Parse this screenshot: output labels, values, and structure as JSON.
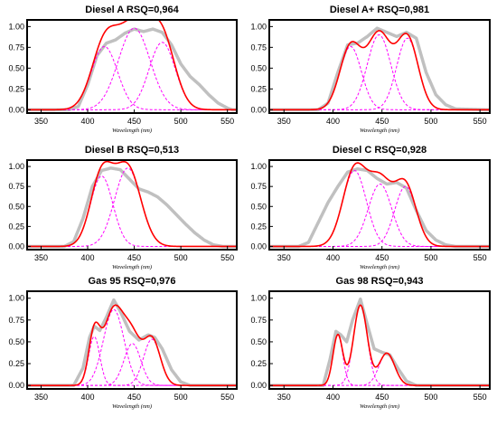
{
  "figure": {
    "background": "#ffffff"
  },
  "chart_data": [
    {
      "type": "line",
      "title": "Diesel A RSQ=0,964",
      "xlabel": "Wavelength (nm)",
      "ylabel": "",
      "xlim": [
        335,
        560
      ],
      "ylim": [
        -0.04,
        1.08
      ],
      "x_ticks": [
        350,
        400,
        450,
        500,
        550
      ],
      "y_ticks": [
        0.0,
        0.25,
        0.5,
        0.75,
        1.0
      ],
      "colors": {
        "measured": "#c0c0c0",
        "fit": "#ff0000",
        "component": "#ff00ff"
      },
      "components": [
        {
          "center": 418,
          "height": 0.76,
          "width": 14
        },
        {
          "center": 450,
          "height": 0.98,
          "width": 17
        },
        {
          "center": 480,
          "height": 0.81,
          "width": 14
        }
      ],
      "measured": [
        [
          340,
          0.0
        ],
        [
          380,
          0.0
        ],
        [
          390,
          0.04
        ],
        [
          400,
          0.3
        ],
        [
          410,
          0.65
        ],
        [
          420,
          0.8
        ],
        [
          430,
          0.84
        ],
        [
          440,
          0.92
        ],
        [
          450,
          0.97
        ],
        [
          460,
          0.94
        ],
        [
          470,
          0.97
        ],
        [
          480,
          0.93
        ],
        [
          490,
          0.78
        ],
        [
          500,
          0.55
        ],
        [
          510,
          0.4
        ],
        [
          520,
          0.3
        ],
        [
          530,
          0.18
        ],
        [
          540,
          0.08
        ],
        [
          550,
          0.02
        ],
        [
          555,
          0.0
        ]
      ]
    },
    {
      "type": "line",
      "title": "Diesel A+ RSQ=0,981",
      "xlabel": "Wavelength (nm)",
      "ylabel": "",
      "xlim": [
        335,
        560
      ],
      "ylim": [
        -0.04,
        1.08
      ],
      "x_ticks": [
        350,
        400,
        450,
        500,
        550
      ],
      "y_ticks": [
        0.0,
        0.25,
        0.5,
        0.75,
        1.0
      ],
      "colors": {
        "measured": "#c0c0c0",
        "fit": "#ff0000",
        "component": "#ff00ff"
      },
      "components": [
        {
          "center": 418,
          "height": 0.76,
          "width": 11
        },
        {
          "center": 447,
          "height": 0.9,
          "width": 12
        },
        {
          "center": 476,
          "height": 0.86,
          "width": 11
        }
      ],
      "measured": [
        [
          340,
          0.0
        ],
        [
          385,
          0.0
        ],
        [
          395,
          0.08
        ],
        [
          405,
          0.45
        ],
        [
          415,
          0.78
        ],
        [
          425,
          0.8
        ],
        [
          435,
          0.88
        ],
        [
          445,
          0.98
        ],
        [
          455,
          0.93
        ],
        [
          465,
          0.88
        ],
        [
          475,
          0.93
        ],
        [
          485,
          0.86
        ],
        [
          495,
          0.45
        ],
        [
          505,
          0.18
        ],
        [
          515,
          0.06
        ],
        [
          525,
          0.01
        ],
        [
          555,
          0.0
        ]
      ]
    },
    {
      "type": "line",
      "title": "Diesel B RSQ=0,513",
      "xlabel": "Wavelength (nm)",
      "ylabel": "",
      "xlim": [
        335,
        560
      ],
      "ylim": [
        -0.04,
        1.08
      ],
      "x_ticks": [
        350,
        400,
        450,
        500,
        550
      ],
      "y_ticks": [
        0.0,
        0.25,
        0.5,
        0.75,
        1.0
      ],
      "colors": {
        "measured": "#c0c0c0",
        "fit": "#ff0000",
        "component": "#ff00ff"
      },
      "components": [
        {
          "center": 415,
          "height": 0.88,
          "width": 12
        },
        {
          "center": 443,
          "height": 0.98,
          "width": 14
        }
      ],
      "measured": [
        [
          340,
          0.0
        ],
        [
          375,
          0.0
        ],
        [
          385,
          0.06
        ],
        [
          395,
          0.35
        ],
        [
          405,
          0.75
        ],
        [
          415,
          0.95
        ],
        [
          425,
          0.98
        ],
        [
          435,
          0.96
        ],
        [
          445,
          0.84
        ],
        [
          455,
          0.72
        ],
        [
          465,
          0.68
        ],
        [
          475,
          0.62
        ],
        [
          485,
          0.52
        ],
        [
          495,
          0.4
        ],
        [
          505,
          0.28
        ],
        [
          515,
          0.17
        ],
        [
          525,
          0.08
        ],
        [
          535,
          0.02
        ],
        [
          545,
          0.0
        ],
        [
          555,
          0.0
        ]
      ]
    },
    {
      "type": "line",
      "title": "Diesel C RSQ=0,928",
      "xlabel": "Wavelength (nm)",
      "ylabel": "",
      "xlim": [
        335,
        560
      ],
      "ylim": [
        -0.04,
        1.08
      ],
      "x_ticks": [
        350,
        400,
        450,
        500,
        550
      ],
      "y_ticks": [
        0.0,
        0.25,
        0.5,
        0.75,
        1.0
      ],
      "colors": {
        "measured": "#c0c0c0",
        "fit": "#ff0000",
        "component": "#ff00ff"
      },
      "components": [
        {
          "center": 422,
          "height": 0.95,
          "width": 12
        },
        {
          "center": 448,
          "height": 0.78,
          "width": 12
        },
        {
          "center": 474,
          "height": 0.75,
          "width": 11
        }
      ],
      "measured": [
        [
          340,
          0.0
        ],
        [
          365,
          0.0
        ],
        [
          375,
          0.05
        ],
        [
          385,
          0.3
        ],
        [
          395,
          0.55
        ],
        [
          405,
          0.75
        ],
        [
          415,
          0.93
        ],
        [
          425,
          0.97
        ],
        [
          435,
          0.95
        ],
        [
          445,
          0.85
        ],
        [
          455,
          0.78
        ],
        [
          465,
          0.8
        ],
        [
          475,
          0.73
        ],
        [
          485,
          0.45
        ],
        [
          495,
          0.2
        ],
        [
          505,
          0.08
        ],
        [
          515,
          0.02
        ],
        [
          525,
          0.0
        ],
        [
          555,
          0.0
        ]
      ]
    },
    {
      "type": "line",
      "title": "Gas 95 RSQ=0,976",
      "xlabel": "Wavelength (nm)",
      "ylabel": "",
      "xlim": [
        335,
        560
      ],
      "ylim": [
        -0.04,
        1.08
      ],
      "x_ticks": [
        350,
        400,
        450,
        500,
        550
      ],
      "y_ticks": [
        0.0,
        0.25,
        0.5,
        0.75,
        1.0
      ],
      "colors": {
        "measured": "#c0c0c0",
        "fit": "#ff0000",
        "component": "#ff00ff"
      },
      "components": [
        {
          "center": 407,
          "height": 0.56,
          "width": 6
        },
        {
          "center": 428,
          "height": 0.87,
          "width": 11
        },
        {
          "center": 448,
          "height": 0.48,
          "width": 9
        },
        {
          "center": 469,
          "height": 0.53,
          "width": 9
        }
      ],
      "measured": [
        [
          340,
          0.0
        ],
        [
          385,
          0.0
        ],
        [
          395,
          0.2
        ],
        [
          402,
          0.55
        ],
        [
          407,
          0.68
        ],
        [
          413,
          0.63
        ],
        [
          420,
          0.78
        ],
        [
          428,
          0.98
        ],
        [
          435,
          0.85
        ],
        [
          445,
          0.62
        ],
        [
          455,
          0.52
        ],
        [
          465,
          0.58
        ],
        [
          472,
          0.55
        ],
        [
          480,
          0.42
        ],
        [
          490,
          0.18
        ],
        [
          500,
          0.04
        ],
        [
          510,
          0.0
        ],
        [
          555,
          0.0
        ]
      ]
    },
    {
      "type": "line",
      "title": "Gas 98 RSQ=0,943",
      "xlabel": "Wavelength (nm)",
      "ylabel": "",
      "xlim": [
        335,
        560
      ],
      "ylim": [
        -0.04,
        1.08
      ],
      "x_ticks": [
        350,
        400,
        450,
        500,
        550
      ],
      "y_ticks": [
        0.0,
        0.25,
        0.5,
        0.75,
        1.0
      ],
      "colors": {
        "measured": "#c0c0c0",
        "fit": "#ff0000",
        "component": "#ff00ff"
      },
      "components": [
        {
          "center": 405,
          "height": 0.58,
          "width": 5
        },
        {
          "center": 428,
          "height": 0.92,
          "width": 7
        },
        {
          "center": 455,
          "height": 0.37,
          "width": 8
        }
      ],
      "measured": [
        [
          340,
          0.0
        ],
        [
          390,
          0.0
        ],
        [
          397,
          0.3
        ],
        [
          403,
          0.62
        ],
        [
          408,
          0.58
        ],
        [
          414,
          0.5
        ],
        [
          420,
          0.75
        ],
        [
          428,
          0.99
        ],
        [
          435,
          0.7
        ],
        [
          442,
          0.42
        ],
        [
          450,
          0.38
        ],
        [
          458,
          0.35
        ],
        [
          466,
          0.2
        ],
        [
          475,
          0.05
        ],
        [
          485,
          0.0
        ],
        [
          555,
          0.0
        ]
      ]
    }
  ]
}
